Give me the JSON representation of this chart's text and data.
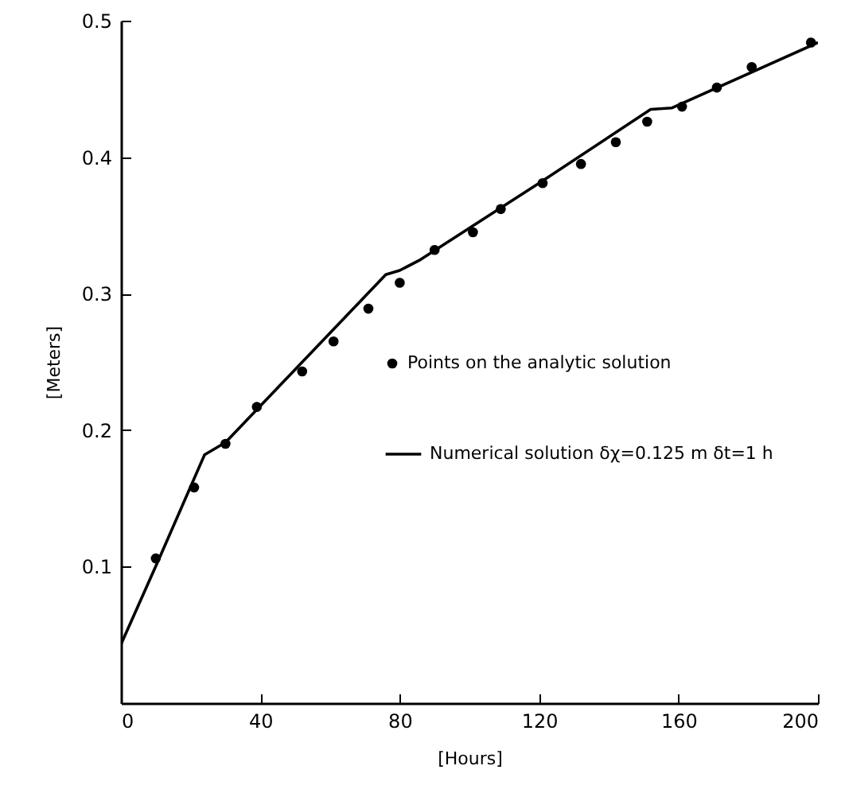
{
  "chart_data": {
    "type": "scatter",
    "xlabel": "[Hours]",
    "ylabel": "[Meters]",
    "xlim": [
      0,
      200
    ],
    "ylim": [
      0,
      0.5
    ],
    "xticks": [
      0,
      40,
      80,
      120,
      160,
      200
    ],
    "yticks": [
      0.1,
      0.2,
      0.3,
      0.4,
      0.5
    ],
    "grid": false,
    "legend": "right",
    "series": [
      {
        "name": "Points on the analytic solution",
        "marker": "circle",
        "color": "#000000",
        "x": [
          10,
          21,
          30,
          39,
          52,
          61,
          71,
          80,
          90,
          101,
          109,
          121,
          132,
          142,
          151,
          161,
          171,
          181,
          198
        ],
        "values": [
          0.106,
          0.158,
          0.19,
          0.217,
          0.243,
          0.265,
          0.289,
          0.308,
          0.332,
          0.345,
          0.362,
          0.381,
          0.395,
          0.411,
          0.426,
          0.437,
          0.451,
          0.466,
          0.484
        ]
      },
      {
        "name": "Numerical solution δχ=0.125 m δt=1 h",
        "type": "line",
        "color": "#000000",
        "line_style": "solid",
        "marker": "none",
        "x": [
          0,
          11,
          24,
          30,
          76,
          80,
          86,
          120,
          152,
          158,
          200
        ],
        "values": [
          0.043,
          0.106,
          0.182,
          0.191,
          0.314,
          0.317,
          0.325,
          0.381,
          0.435,
          0.436,
          0.484
        ]
      }
    ]
  }
}
